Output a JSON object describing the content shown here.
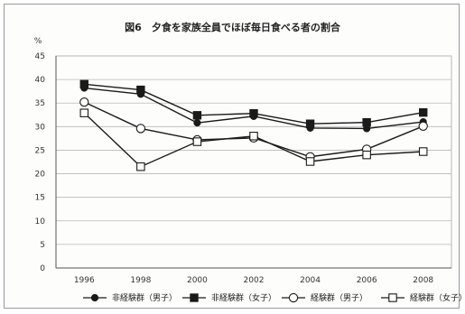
{
  "chart_data": {
    "type": "line",
    "title": "図6　夕食を家族全員でほぼ毎日食べる者の割合",
    "ylabel": "%",
    "xlabel": "",
    "ylim": [
      0,
      45
    ],
    "ystep": 5,
    "grid": true,
    "legend_position": "bottom",
    "categories": [
      "1996",
      "1998",
      "2000",
      "2002",
      "2004",
      "2006",
      "2008"
    ],
    "series": [
      {
        "name": "非経験群（男子）",
        "marker": "filled-circle",
        "values": [
          38.2,
          36.9,
          30.8,
          32.2,
          29.7,
          29.6,
          31.0
        ]
      },
      {
        "name": "非経験群（女子）",
        "marker": "filled-square",
        "values": [
          39.0,
          37.8,
          32.4,
          32.8,
          30.6,
          30.9,
          33.0
        ]
      },
      {
        "name": "経験群（男子）",
        "marker": "open-circle",
        "values": [
          35.2,
          29.6,
          27.2,
          27.6,
          23.6,
          25.2,
          30.1
        ]
      },
      {
        "name": "経験群（女子）",
        "marker": "open-square",
        "values": [
          32.9,
          21.5,
          26.8,
          28.0,
          22.6,
          24.0,
          24.7
        ]
      }
    ],
    "colors": {
      "line": "#1a1a1a",
      "grid": "#b8b8b8",
      "axis": "#555555"
    }
  }
}
